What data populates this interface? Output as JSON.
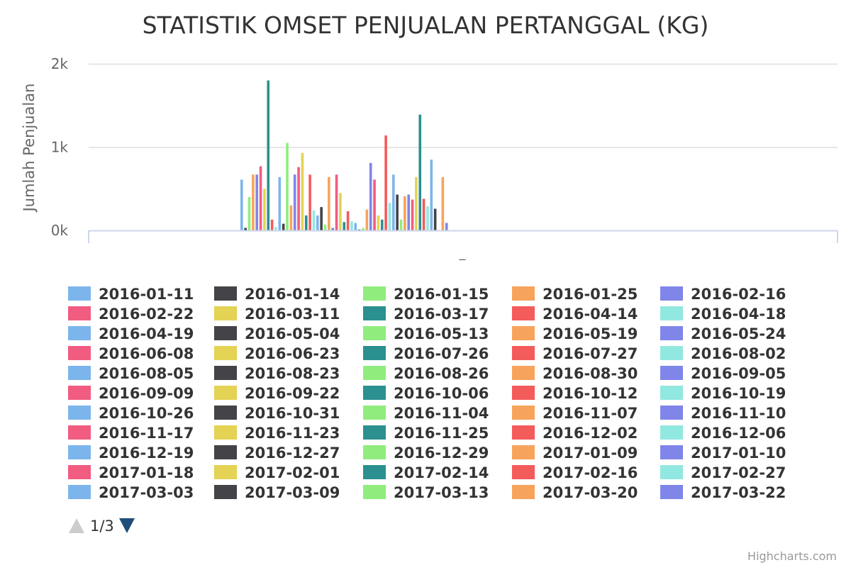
{
  "chart_data": {
    "type": "bar",
    "title": "STATISTIK OMSET PENJUALAN PERTANGGAL (KG)",
    "ylabel": "Jumlah Penjualan",
    "xlabel": "",
    "categories": [
      "_"
    ],
    "y_ticks": [
      "0k",
      "1k",
      "2k"
    ],
    "ylim": [
      0,
      2000
    ],
    "grid": true,
    "legend": {
      "placement": "bottom",
      "columns": 5,
      "page": "1/3"
    },
    "credits": "Highcharts.com",
    "palette": [
      "#7cb5ec",
      "#434348",
      "#90ed7d",
      "#f7a35c",
      "#8085e9",
      "#f15c80",
      "#e4d354",
      "#2b908f",
      "#f45b5b",
      "#91e8e1"
    ],
    "series": [
      {
        "name": "2016-01-11",
        "value": 610
      },
      {
        "name": "2016-01-14",
        "value": 30
      },
      {
        "name": "2016-01-15",
        "value": 400
      },
      {
        "name": "2016-01-25",
        "value": 670
      },
      {
        "name": "2016-02-16",
        "value": 670
      },
      {
        "name": "2016-02-22",
        "value": 770
      },
      {
        "name": "2016-03-11",
        "value": 500
      },
      {
        "name": "2016-03-17",
        "value": 1800
      },
      {
        "name": "2016-04-14",
        "value": 130
      },
      {
        "name": "2016-04-18",
        "value": 40
      },
      {
        "name": "2016-04-19",
        "value": 640
      },
      {
        "name": "2016-05-04",
        "value": 80
      },
      {
        "name": "2016-05-13",
        "value": 1050
      },
      {
        "name": "2016-05-19",
        "value": 300
      },
      {
        "name": "2016-05-24",
        "value": 670
      },
      {
        "name": "2016-06-08",
        "value": 760
      },
      {
        "name": "2016-06-23",
        "value": 930
      },
      {
        "name": "2016-07-26",
        "value": 180
      },
      {
        "name": "2016-07-27",
        "value": 670
      },
      {
        "name": "2016-08-02",
        "value": 240
      },
      {
        "name": "2016-08-05",
        "value": 180
      },
      {
        "name": "2016-08-23",
        "value": 280
      },
      {
        "name": "2016-08-26",
        "value": 70
      },
      {
        "name": "2016-08-30",
        "value": 640
      },
      {
        "name": "2016-09-05",
        "value": 30
      },
      {
        "name": "2016-09-09",
        "value": 670
      },
      {
        "name": "2016-09-22",
        "value": 450
      },
      {
        "name": "2016-10-06",
        "value": 100
      },
      {
        "name": "2016-10-12",
        "value": 230
      },
      {
        "name": "2016-10-19",
        "value": 110
      },
      {
        "name": "2016-10-26",
        "value": 90
      },
      {
        "name": "2016-10-31",
        "value": 10
      },
      {
        "name": "2016-11-04",
        "value": 30
      },
      {
        "name": "2016-11-07",
        "value": 250
      },
      {
        "name": "2016-11-10",
        "value": 810
      },
      {
        "name": "2016-11-17",
        "value": 610
      },
      {
        "name": "2016-11-23",
        "value": 180
      },
      {
        "name": "2016-11-25",
        "value": 130
      },
      {
        "name": "2016-12-02",
        "value": 1140
      },
      {
        "name": "2016-12-06",
        "value": 330
      },
      {
        "name": "2016-12-19",
        "value": 670
      },
      {
        "name": "2016-12-27",
        "value": 430
      },
      {
        "name": "2016-12-29",
        "value": 130
      },
      {
        "name": "2017-01-09",
        "value": 410
      },
      {
        "name": "2017-01-10",
        "value": 430
      },
      {
        "name": "2017-01-18",
        "value": 370
      },
      {
        "name": "2017-02-01",
        "value": 640
      },
      {
        "name": "2017-02-14",
        "value": 1390
      },
      {
        "name": "2017-02-16",
        "value": 380
      },
      {
        "name": "2017-02-27",
        "value": 290
      },
      {
        "name": "2017-03-03",
        "value": 850
      },
      {
        "name": "2017-03-09",
        "value": 260
      },
      {
        "name": "2017-03-13",
        "value": 0
      },
      {
        "name": "2017-03-20",
        "value": 640
      },
      {
        "name": "2017-03-22",
        "value": 90
      }
    ]
  }
}
